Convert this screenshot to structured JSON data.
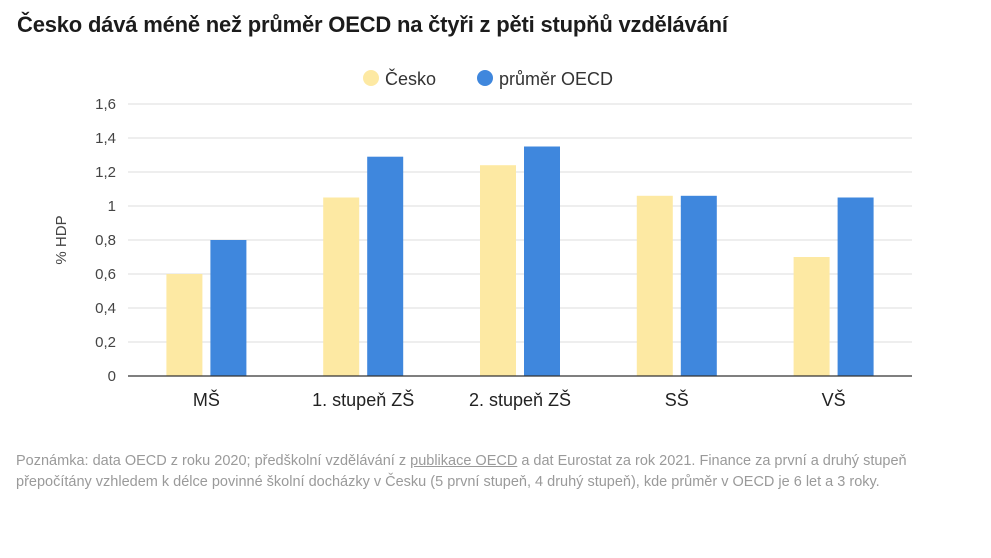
{
  "title": "Česko dává méně než průměr OECD na čtyři z pěti stupňů vzdělávání",
  "chart_data": {
    "type": "bar",
    "categories": [
      "MŠ",
      "1. stupeň ZŠ",
      "2. stupeň ZŠ",
      "SŠ",
      "VŠ"
    ],
    "series": [
      {
        "name": "Česko",
        "color": "#fde9a3",
        "values": [
          0.6,
          1.05,
          1.24,
          1.06,
          0.7
        ]
      },
      {
        "name": "průměr OECD",
        "color": "#3f87dd",
        "values": [
          0.8,
          1.29,
          1.35,
          1.06,
          1.05
        ]
      }
    ],
    "ylabel": "% HDP",
    "ylim": [
      0,
      1.6
    ],
    "yticks": [
      0,
      0.2,
      0.4,
      0.6,
      0.8,
      1,
      1.2,
      1.4,
      1.6
    ],
    "ytick_labels": [
      "0",
      "0,2",
      "0,4",
      "0,6",
      "0,8",
      "1",
      "1,2",
      "1,4",
      "1,6"
    ],
    "grid": true,
    "legend": "top-center"
  },
  "note": {
    "before": "Poznámka: data OECD z roku 2020; předškolní vzdělávání z ",
    "link": "publikace OECD",
    "after": " a dat Eurostat za rok 2021. Finance za první a druhý stupeň přepočítány vzhledem k délce povinné školní docházky v Česku (5 první stupeň, 4 druhý stupeň), kde průměr v OECD je 6 let a 3 roky."
  }
}
